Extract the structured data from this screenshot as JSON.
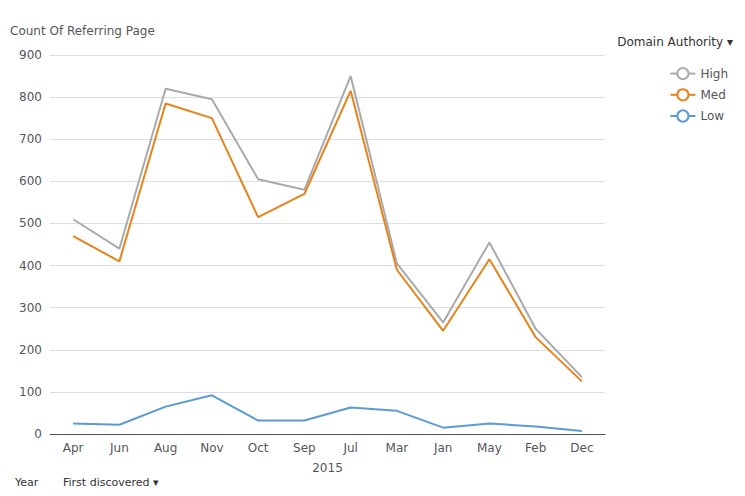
{
  "chart_data": {
    "type": "line",
    "categories": [
      "Apr",
      "Jun",
      "Aug",
      "Nov",
      "Oct",
      "Sep",
      "Jul",
      "Mar",
      "Jan",
      "May",
      "Feb",
      "Dec"
    ],
    "series": [
      {
        "name": "High",
        "color": "#aaaaaa",
        "values": [
          510,
          440,
          820,
          795,
          605,
          580,
          850,
          405,
          265,
          455,
          250,
          135
        ]
      },
      {
        "name": "Med",
        "color": "#E8821A",
        "values": [
          470,
          410,
          785,
          750,
          515,
          570,
          815,
          390,
          245,
          415,
          230,
          125
        ]
      },
      {
        "name": "Low",
        "color": "#5B9BD5",
        "values": [
          25,
          22,
          65,
          92,
          32,
          32,
          63,
          55,
          15,
          25,
          18,
          7
        ]
      }
    ],
    "xlabel": "2015",
    "ylabel": "Count Of Referring Page",
    "annotations": [
      "Domain Authority ▾",
      "Year",
      "First discovered ▾"
    ],
    "ylim": [
      0,
      900
    ],
    "yticks": [
      0,
      100,
      200,
      300,
      400,
      500,
      600,
      700,
      800,
      900
    ],
    "grid": true,
    "legend": "right"
  }
}
